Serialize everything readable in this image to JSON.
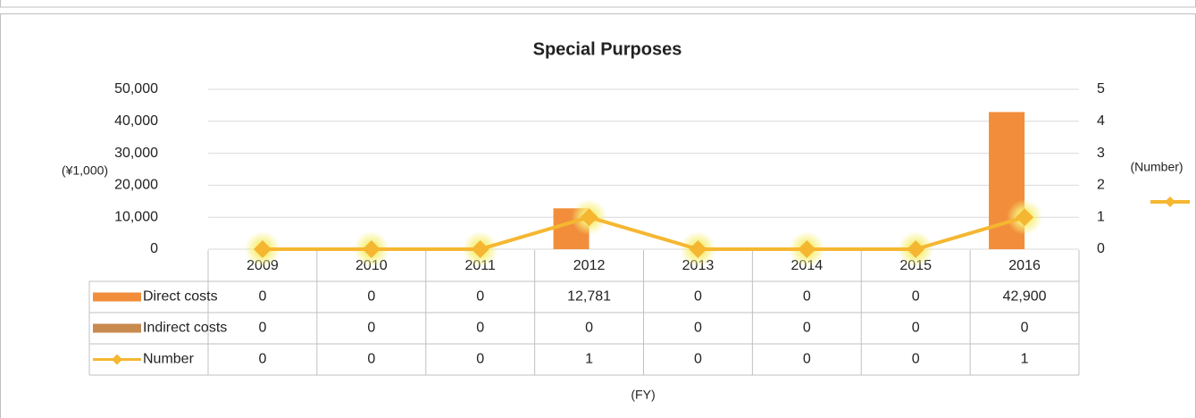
{
  "chart_data": {
    "type": "bar",
    "title": "Special Purposes",
    "categories": [
      "2009",
      "2010",
      "2011",
      "2012",
      "2013",
      "2014",
      "2015",
      "2016"
    ],
    "series": [
      {
        "name": "Direct costs",
        "color": "#f28e3b",
        "values": [
          0,
          0,
          0,
          12781,
          0,
          0,
          0,
          42900
        ],
        "value_labels": [
          "0",
          "0",
          "0",
          "12,781",
          "0",
          "0",
          "0",
          "42,900"
        ]
      },
      {
        "name": "Indirect costs",
        "color": "#c98a4f",
        "values": [
          0,
          0,
          0,
          0,
          0,
          0,
          0,
          0
        ]
      },
      {
        "name": "Number",
        "color": "#f5b731",
        "axis": "y2",
        "type": "line",
        "values": [
          0,
          0,
          0,
          1,
          0,
          0,
          0,
          1
        ]
      }
    ],
    "y_label": "(¥1,000)",
    "y2_label": "(Number)",
    "x_label": "(FY)",
    "ylim": [
      0,
      50000
    ],
    "yticks": [
      0,
      {
        "value": 10000,
        "label": "10,000"
      },
      {
        "value": 20000,
        "label": "20,000"
      },
      {
        "value": 30000,
        "label": "30,000"
      },
      {
        "value": 40000,
        "label": "40,000"
      },
      {
        "value": 50000,
        "label": "50,000"
      }
    ],
    "y2lim": [
      0,
      5
    ],
    "y2ticks": [
      0,
      1,
      2,
      3,
      4,
      5
    ],
    "grid": true
  }
}
